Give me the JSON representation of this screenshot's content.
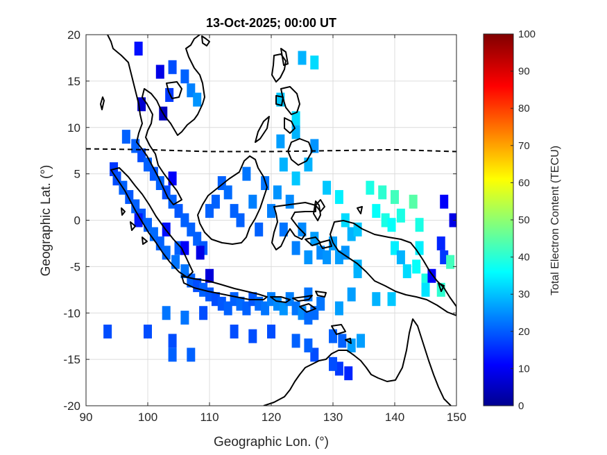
{
  "title": "13-Oct-2025; 00:00 UT",
  "axes": {
    "xlabel": "Geographic Lon. (°)",
    "ylabel": "Geographic Lat. (°)",
    "xlim": [
      90,
      150
    ],
    "ylim": [
      -20,
      20
    ],
    "xticks": [
      "90",
      "100",
      "110",
      "120",
      "130",
      "140",
      "150"
    ],
    "yticks": [
      "20",
      "15",
      "10",
      "5",
      "0",
      "-5",
      "-10",
      "-15",
      "-20"
    ],
    "grid": true
  },
  "colorbar": {
    "label": "Total Electron Content (TECU)",
    "range": [
      0,
      100
    ],
    "ticks": [
      "100",
      "90",
      "80",
      "70",
      "60",
      "50",
      "40",
      "30",
      "20",
      "10",
      "0"
    ],
    "colormap": "jet"
  },
  "chart_data": {
    "type": "heatmap",
    "title": "13-Oct-2025; 00:00 UT",
    "xlabel": "Geographic Lon. (°)",
    "ylabel": "Geographic Lat. (°)",
    "xlim": [
      90,
      150
    ],
    "ylim": [
      -20,
      20
    ],
    "value_label": "Total Electron Content (TECU)",
    "value_range": [
      0,
      100
    ],
    "magnetic_equator_lat": [
      [
        90,
        7.7
      ],
      [
        100,
        7.6
      ],
      [
        110,
        7.4
      ],
      [
        120,
        7.4
      ],
      [
        130,
        7.5
      ],
      [
        140,
        7.6
      ],
      [
        150,
        7.4
      ]
    ],
    "points": [
      [
        94.5,
        5.5,
        18
      ],
      [
        95,
        4.5,
        20
      ],
      [
        96,
        3.5,
        22
      ],
      [
        96.5,
        9,
        22
      ],
      [
        97,
        2.5,
        21
      ],
      [
        98,
        8,
        22
      ],
      [
        98,
        1.5,
        22
      ],
      [
        99,
        7,
        20
      ],
      [
        99,
        0.5,
        21
      ],
      [
        100,
        6,
        22
      ],
      [
        100,
        -0.5,
        22
      ],
      [
        101,
        5,
        21
      ],
      [
        101,
        -1.5,
        23
      ],
      [
        102,
        4,
        22
      ],
      [
        102,
        -2.5,
        22
      ],
      [
        103,
        3,
        20
      ],
      [
        103,
        -3.5,
        23
      ],
      [
        104,
        2,
        22
      ],
      [
        104.5,
        -4.5,
        24
      ],
      [
        105,
        1,
        21
      ],
      [
        105,
        -3,
        22
      ],
      [
        106,
        0,
        22
      ],
      [
        106,
        -5.5,
        24
      ],
      [
        107,
        -1,
        22
      ],
      [
        107,
        -6.5,
        22
      ],
      [
        108,
        -2,
        22
      ],
      [
        108,
        -7,
        20
      ],
      [
        109,
        -3,
        21
      ],
      [
        109,
        -7.5,
        22
      ],
      [
        110,
        1,
        22
      ],
      [
        110,
        -8,
        21
      ],
      [
        111,
        2,
        22
      ],
      [
        111,
        -8.5,
        20
      ],
      [
        112,
        4,
        22
      ],
      [
        112,
        -9,
        21
      ],
      [
        113,
        3,
        23
      ],
      [
        113,
        -9.5,
        22
      ],
      [
        114,
        1,
        22
      ],
      [
        114,
        -8.5,
        22
      ],
      [
        115,
        0,
        22
      ],
      [
        115,
        -9,
        23
      ],
      [
        116,
        5,
        24
      ],
      [
        116,
        -9.5,
        22
      ],
      [
        117,
        2,
        25
      ],
      [
        117,
        -8.5,
        21
      ],
      [
        118,
        -1,
        22
      ],
      [
        118,
        -9,
        23
      ],
      [
        119,
        4,
        24
      ],
      [
        119,
        -9.5,
        24
      ],
      [
        120,
        1,
        25
      ],
      [
        120,
        -8.5,
        25
      ],
      [
        121,
        3,
        27
      ],
      [
        121,
        -9,
        26
      ],
      [
        122,
        -1,
        24
      ],
      [
        122,
        -9.5,
        27
      ],
      [
        123,
        2,
        26
      ],
      [
        123,
        -8.5,
        25
      ],
      [
        124,
        -3,
        25
      ],
      [
        124,
        -9.5,
        24
      ],
      [
        125,
        -1,
        26
      ],
      [
        125,
        -10,
        26
      ],
      [
        126,
        -4,
        27
      ],
      [
        126,
        -10.5,
        23
      ],
      [
        127,
        -2,
        28
      ],
      [
        127,
        -10,
        23
      ],
      [
        128,
        -3.5,
        26
      ],
      [
        129,
        -4,
        27
      ],
      [
        130,
        -2.5,
        28
      ],
      [
        131,
        -4,
        28
      ],
      [
        132,
        -3.5,
        27
      ],
      [
        133,
        -1.5,
        30
      ],
      [
        134,
        -5,
        30
      ],
      [
        93.5,
        -12,
        20
      ],
      [
        100,
        -12,
        20
      ],
      [
        104,
        -13,
        20
      ],
      [
        98.5,
        18.5,
        14
      ],
      [
        102,
        16,
        10
      ],
      [
        104,
        16.5,
        20
      ],
      [
        106,
        15.5,
        22
      ],
      [
        107,
        14,
        25
      ],
      [
        108,
        13,
        27
      ],
      [
        99,
        12.5,
        8
      ],
      [
        102.5,
        11.5,
        6
      ],
      [
        103.5,
        13.5,
        18
      ],
      [
        104,
        4.5,
        12
      ],
      [
        98.5,
        0,
        15
      ],
      [
        103,
        -1,
        14
      ],
      [
        106,
        -3,
        12
      ],
      [
        108.5,
        -3.5,
        10
      ],
      [
        110,
        -6,
        9
      ],
      [
        109,
        -10,
        20
      ],
      [
        114,
        -12,
        20
      ],
      [
        117,
        -12.5,
        20
      ],
      [
        120,
        -12,
        20
      ],
      [
        124,
        -13,
        22
      ],
      [
        104,
        -14.5,
        22
      ],
      [
        107,
        -14.5,
        22
      ],
      [
        103,
        -10,
        24
      ],
      [
        106,
        -10.5,
        24
      ],
      [
        121.5,
        13,
        32
      ],
      [
        124,
        11,
        34
      ],
      [
        125,
        17.5,
        30
      ],
      [
        127,
        17,
        34
      ],
      [
        124,
        9.5,
        30
      ],
      [
        121.5,
        8.5,
        28
      ],
      [
        127,
        8,
        27
      ],
      [
        126,
        6,
        30
      ],
      [
        124,
        4.5,
        32
      ],
      [
        122,
        6,
        30
      ],
      [
        129,
        3.5,
        32
      ],
      [
        131,
        2.5,
        36
      ],
      [
        132,
        0,
        34
      ],
      [
        134,
        -1,
        32
      ],
      [
        136,
        3.5,
        40
      ],
      [
        138,
        3,
        42
      ],
      [
        140,
        2.5,
        44
      ],
      [
        141,
        0.5,
        40
      ],
      [
        143,
        2,
        46
      ],
      [
        144,
        -0.5,
        40
      ],
      [
        137,
        1,
        38
      ],
      [
        138.5,
        0,
        40
      ],
      [
        139.5,
        -0.5,
        38
      ],
      [
        140,
        -3,
        36
      ],
      [
        141,
        -4,
        30
      ],
      [
        142,
        -5.5,
        34
      ],
      [
        143.5,
        -5,
        38
      ],
      [
        144,
        -3,
        36
      ],
      [
        145,
        -6.5,
        40
      ],
      [
        146,
        -6,
        12
      ],
      [
        147.5,
        -2.5,
        16
      ],
      [
        148,
        -4,
        18
      ],
      [
        149,
        -4.5,
        44
      ],
      [
        147.5,
        -7.5,
        42
      ],
      [
        148,
        2,
        12
      ],
      [
        149.5,
        0,
        10
      ],
      [
        145,
        -7.5,
        35
      ],
      [
        139.5,
        -8.5,
        32
      ],
      [
        137,
        -8.5,
        30
      ],
      [
        133,
        -8,
        28
      ],
      [
        131,
        -9.5,
        28
      ],
      [
        128,
        -9,
        24
      ],
      [
        126,
        -8,
        24
      ],
      [
        134,
        -5.5,
        30
      ],
      [
        130,
        -12.5,
        22
      ],
      [
        131.5,
        -13,
        22
      ],
      [
        133,
        -13.5,
        28
      ],
      [
        134.5,
        -13,
        28
      ],
      [
        131,
        -16,
        18
      ],
      [
        132.5,
        -16.5,
        16
      ],
      [
        130,
        -15.5,
        20
      ],
      [
        127,
        -14.5,
        20
      ],
      [
        126,
        -13.5,
        22
      ]
    ]
  }
}
